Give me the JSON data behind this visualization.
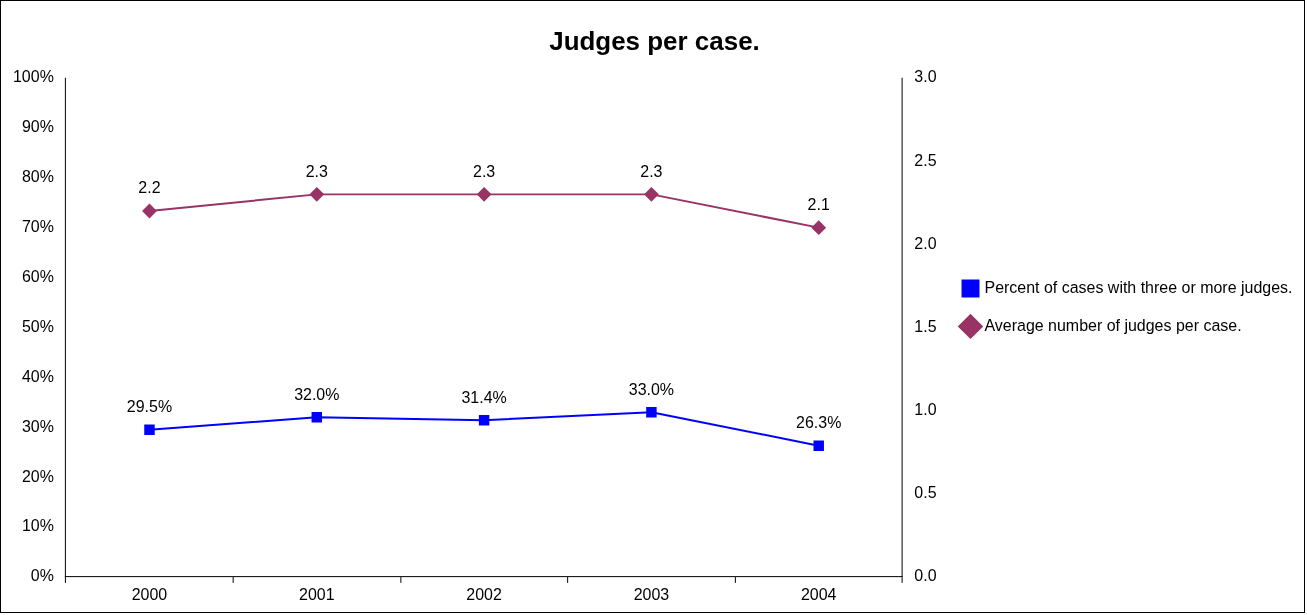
{
  "chart_data": {
    "type": "line",
    "title": "Judges per case.",
    "categories": [
      "2000",
      "2001",
      "2002",
      "2003",
      "2004"
    ],
    "series": [
      {
        "name": "Percent of cases with three or more judges.",
        "color": "#0000ff",
        "marker": "square",
        "values": [
          29.5,
          32.0,
          31.4,
          33.0,
          26.3
        ],
        "value_labels": [
          "29.5%",
          "32.0%",
          "31.4%",
          "33.0%",
          "26.3%"
        ]
      },
      {
        "name": "Average number of judges per case.",
        "color": "#993366",
        "marker": "diamond",
        "axis": "y2",
        "values": [
          2.2,
          2.3,
          2.3,
          2.3,
          2.1
        ],
        "value_labels": [
          "2.2",
          "2.3",
          "2.3",
          "2.3",
          "2.1"
        ]
      }
    ],
    "ylim": [
      0,
      100
    ],
    "yticks": [
      {
        "value": 0,
        "label": "0%"
      },
      {
        "value": 10,
        "label": "10%"
      },
      {
        "value": 20,
        "label": "20%"
      },
      {
        "value": 30,
        "label": "30%"
      },
      {
        "value": 40,
        "label": "40%"
      },
      {
        "value": 50,
        "label": "50%"
      },
      {
        "value": 60,
        "label": "60%"
      },
      {
        "value": 70,
        "label": "70%"
      },
      {
        "value": 80,
        "label": "80%"
      },
      {
        "value": 90,
        "label": "90%"
      },
      {
        "value": 100,
        "label": "100%"
      }
    ],
    "y2lim": [
      0,
      3
    ],
    "y2ticks": [
      {
        "value": 0,
        "label": "0.0"
      },
      {
        "value": 0.5,
        "label": "0.5"
      },
      {
        "value": 1,
        "label": "1.0"
      },
      {
        "value": 1.5,
        "label": "1.5"
      },
      {
        "value": 2,
        "label": "2.0"
      },
      {
        "value": 2.5,
        "label": "2.5"
      },
      {
        "value": 3,
        "label": "3.0"
      }
    ],
    "legend": "right",
    "line_style": "solid"
  }
}
